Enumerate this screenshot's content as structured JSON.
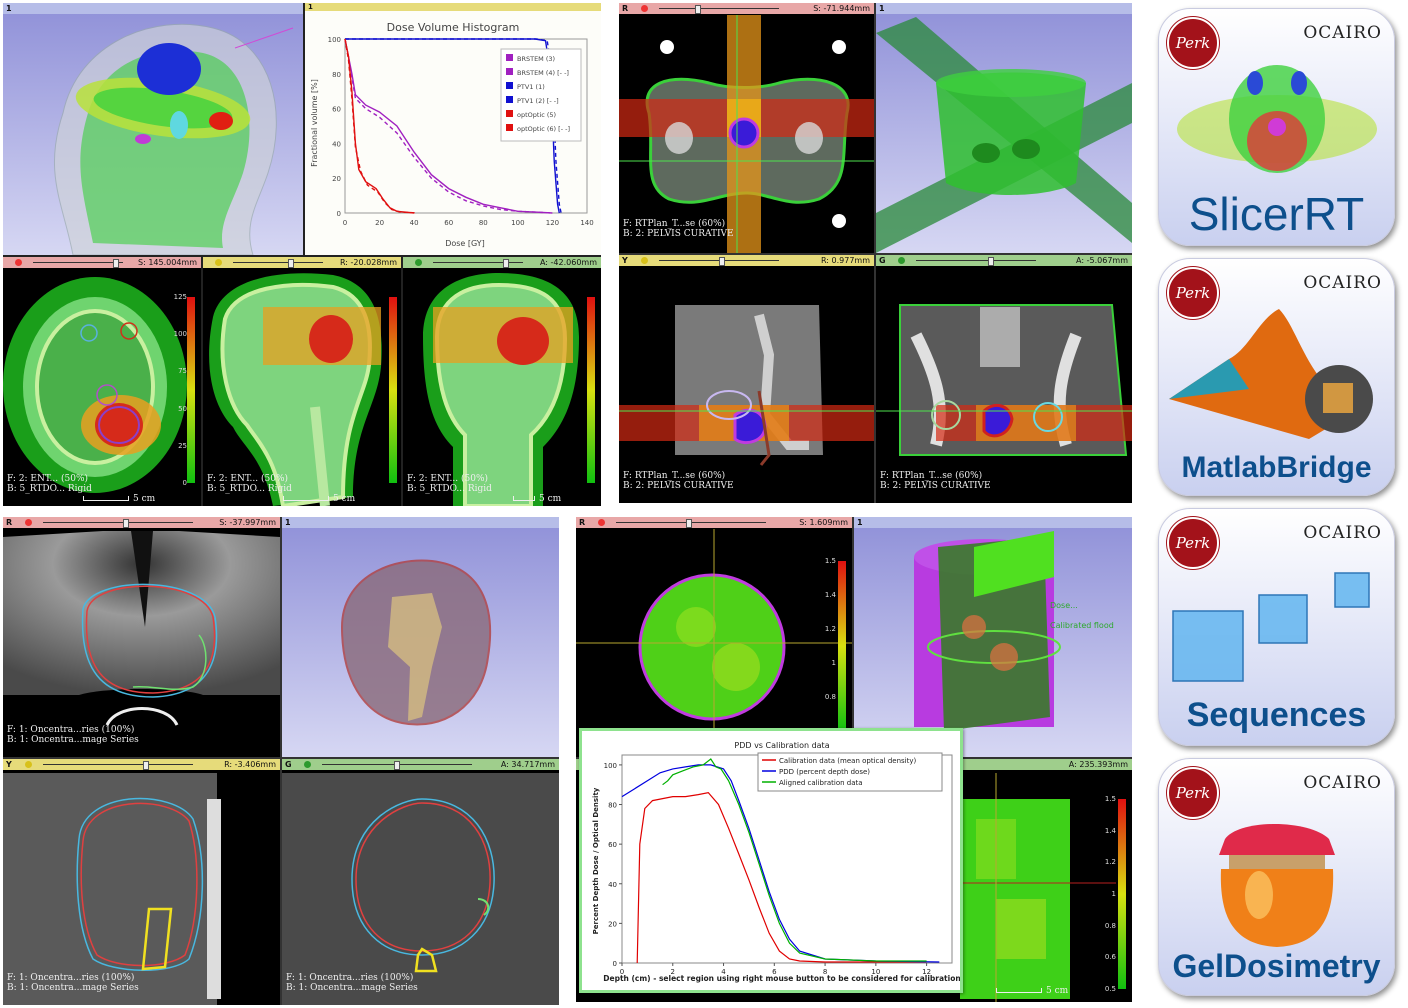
{
  "dvh": {
    "title": "Dose Volume Histogram",
    "xlabel": "Dose [GY]",
    "ylabel": "Fractional volume [%]",
    "xticks": [
      "0",
      "20",
      "40",
      "60",
      "80",
      "100",
      "120",
      "140"
    ],
    "yticks": [
      "0",
      "20",
      "40",
      "60",
      "80",
      "100"
    ],
    "legend": [
      "BRSTEM (3)",
      "BRSTEM (4) [- -]",
      "PTV1 (1)",
      "PTV1 (2) [- -]",
      "optOptic (5)",
      "optOptic (6) [- -]"
    ],
    "view_number": "1"
  },
  "head_slices": {
    "axial_offset": "S: 145.004mm",
    "sagittal_offset": "R: -20.028mm",
    "coronal_offset": "A: -42.060mm",
    "fg_label": "F: 2: ENT... (50%)",
    "bg_label": "B: 5_RTDO... Rigid",
    "scale": "5 cm",
    "colorbar_ticks": [
      "125",
      "100",
      "75",
      "50",
      "25",
      "0"
    ]
  },
  "pelvis": {
    "axial_bar_label": "R",
    "axial_offset": "S: -71.944mm",
    "view3d_number": "1",
    "sag_bar_label": "Y",
    "sag_offset": "R: 0.977mm",
    "cor_bar_label": "G",
    "cor_offset": "A: -5.067mm",
    "fg_label": "F: RTPlan_T...se (60%)",
    "bg_label": "B: 2: PELVIS CURATIVE"
  },
  "ultrasound": {
    "axial_bar_label": "R",
    "axial_offset": "S: -37.997mm",
    "view3d_number": "1",
    "sag_bar_label": "Y",
    "sag_offset": "R: -3.406mm",
    "cor_bar_label": "G",
    "cor_offset": "A: 34.717mm",
    "fg_label": "F: 1: Oncentra...ries (100%)",
    "bg_label": "B: 1: Oncentra...mage Series",
    "fg_label_b": "F: 1: Oncentra...ries (100%)"
  },
  "gel": {
    "axial_bar_label": "R",
    "axial_offset": "S: 1.609mm",
    "view3d_number": "1",
    "lower_offset": "A: 235.393mm",
    "colorbar_ticks": [
      "1.5",
      "1.4",
      "1.2",
      "1",
      "0.8",
      "0.6"
    ],
    "colorbar_ticks_b": [
      "1.5",
      "1.4",
      "1.2",
      "1",
      "0.8",
      "0.6",
      "0.5"
    ],
    "scale": "5 cm",
    "label_3d_a": "Dose...",
    "label_3d_b": "Calibrated flood"
  },
  "chart_data": {
    "type": "line",
    "title": "PDD vs Calibration data",
    "xlabel": "Depth (cm) - select region using right mouse button to be considered for calibration",
    "ylabel": "Percent Depth Dose / Optical Density",
    "xlim": [
      0,
      13
    ],
    "ylim": [
      0,
      105
    ],
    "xticks": [
      "0",
      "2",
      "4",
      "6",
      "8",
      "10",
      "12"
    ],
    "yticks": [
      "0",
      "20",
      "40",
      "60",
      "80",
      "100"
    ],
    "legend_position": "top-right",
    "series": [
      {
        "name": "Calibration data (mean optical density)",
        "color": "#e00000",
        "x": [
          0.6,
          0.7,
          0.9,
          1.2,
          1.6,
          2.0,
          2.5,
          3.0,
          3.4,
          3.8,
          4.2,
          4.6,
          5.0,
          5.4,
          5.8,
          6.2,
          6.6,
          7.0,
          8.0,
          10.0,
          12.0
        ],
        "y": [
          0,
          60,
          78,
          82,
          83,
          84,
          84,
          85,
          86,
          80,
          68,
          55,
          42,
          28,
          15,
          6,
          2,
          1,
          0.5,
          0.5,
          0.5
        ]
      },
      {
        "name": "PDD (percent depth dose)",
        "color": "#0000e0",
        "x": [
          0,
          0.5,
          1.0,
          1.5,
          2.0,
          2.5,
          3.0,
          3.5,
          4.0,
          4.3,
          4.6,
          5.0,
          5.4,
          5.8,
          6.2,
          6.6,
          7.0,
          8.0,
          10.0,
          12.5
        ],
        "y": [
          84,
          88,
          92,
          96,
          98,
          99,
          100,
          100,
          98,
          92,
          82,
          68,
          52,
          36,
          22,
          12,
          6,
          2,
          1,
          0.5
        ]
      },
      {
        "name": "Aligned calibration data",
        "color": "#00b000",
        "x": [
          1.6,
          1.8,
          2.0,
          2.4,
          2.8,
          3.2,
          3.5,
          3.7,
          3.9,
          4.2,
          4.6,
          5.0,
          5.4,
          5.8,
          6.2,
          6.6,
          7.0,
          8.0,
          10.0,
          12.0
        ],
        "y": [
          90,
          92,
          95,
          97,
          99,
          100,
          103,
          99,
          98,
          92,
          80,
          66,
          50,
          34,
          20,
          10,
          5,
          2,
          1,
          1
        ]
      }
    ]
  },
  "badges": [
    {
      "name": "SlicerRT",
      "logo_text": "Perk",
      "partner": "OCAIRO"
    },
    {
      "name": "MatlabBridge",
      "logo_text": "Perk",
      "partner": "OCAIRO"
    },
    {
      "name": "Sequences",
      "logo_text": "Perk",
      "partner": "OCAIRO"
    },
    {
      "name": "GelDosimetry",
      "logo_text": "Perk",
      "partner": "OCAIRO"
    }
  ]
}
